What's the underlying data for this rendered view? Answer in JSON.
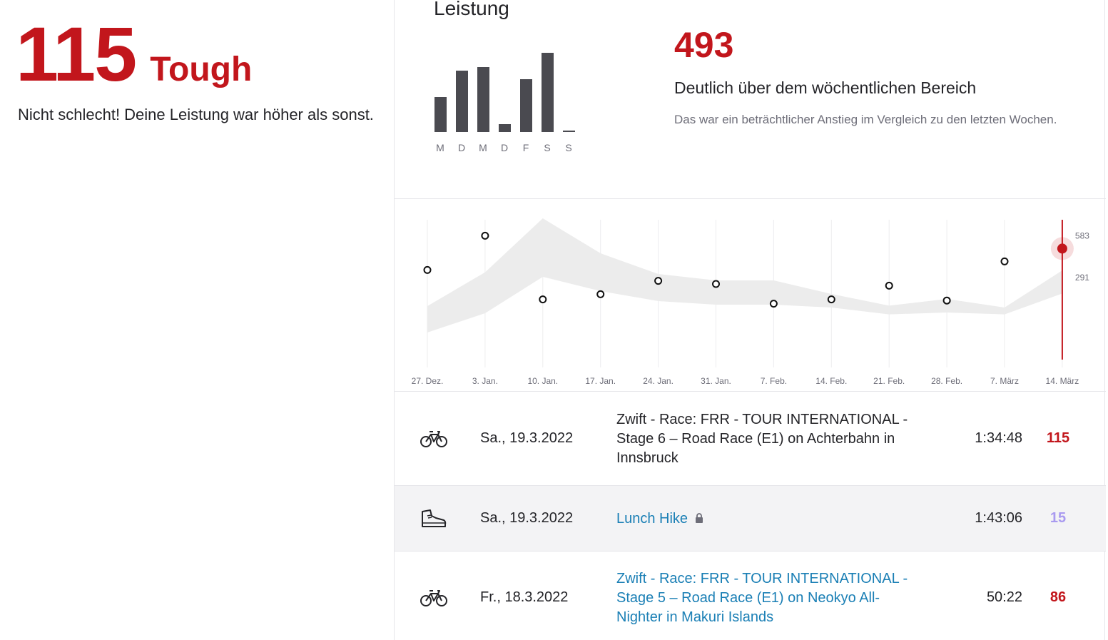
{
  "summary": {
    "score": "115",
    "label": "Tough",
    "description": "Nicht schlecht! Deine Leistung war höher als sonst.",
    "accent_color": "#c2161c"
  },
  "weekly": {
    "title": "Leistung",
    "days": [
      "M",
      "D",
      "M",
      "D",
      "F",
      "S",
      "S"
    ],
    "day_values": [
      45,
      78,
      83,
      10,
      67,
      101,
      2
    ],
    "total": "493",
    "range_title": "Deutlich über dem wöchentlichen Bereich",
    "range_description": "Das war ein beträchtlicher Anstieg im Vergleich zu den letzten Wochen."
  },
  "chart_data": {
    "type": "scatter",
    "title": "",
    "xlabel": "",
    "ylabel": "",
    "categories": [
      "27. Dez.",
      "3. Jan.",
      "10. Jan.",
      "17. Jan.",
      "24. Jan.",
      "31. Jan.",
      "7. Feb.",
      "14. Feb.",
      "21. Feb.",
      "28. Feb.",
      "7. März",
      "14. März"
    ],
    "reference_ticks": [
      "583",
      "291"
    ],
    "series": [
      {
        "values": [
          343,
          583,
          137,
          173,
          267,
          245,
          107,
          137,
          233,
          129,
          403,
          493
        ]
      }
    ],
    "band": {
      "upper": [
        90,
        327,
        705,
        460,
        315,
        270,
        270,
        175,
        93,
        140,
        80,
        340
      ],
      "lower": [
        -95,
        40,
        295,
        195,
        125,
        100,
        100,
        80,
        32,
        45,
        32,
        178
      ]
    },
    "highlight_index": 11,
    "ylim": [
      -200,
      800
    ],
    "grid": true,
    "colors": {
      "band": "#ececec",
      "highlight": "#c2161c",
      "point": "#111111"
    }
  },
  "activities": [
    {
      "icon": "bicycle-icon",
      "date": "Sa., 19.3.2022",
      "name": "Zwift - Race: FRR - TOUR INTERNATIONAL - Stage 6 – Road Race (E1) on Achterbahn in Innsbruck",
      "is_link": false,
      "locked": false,
      "time": "1:34:48",
      "score": "115",
      "score_color": "#c2161c"
    },
    {
      "icon": "hiking-boot-icon",
      "date": "Sa., 19.3.2022",
      "name": "Lunch Hike",
      "is_link": true,
      "locked": true,
      "time": "1:43:06",
      "score": "15",
      "score_color": "#a99af0"
    },
    {
      "icon": "bicycle-icon",
      "date": "Fr., 18.3.2022",
      "name": "Zwift - Race: FRR - TOUR INTERNATIONAL - Stage 5 – Road Race (E1) on Neokyo All-Nighter in Makuri Islands",
      "is_link": true,
      "locked": false,
      "time": "50:22",
      "score": "86",
      "score_color": "#c2161c"
    }
  ]
}
